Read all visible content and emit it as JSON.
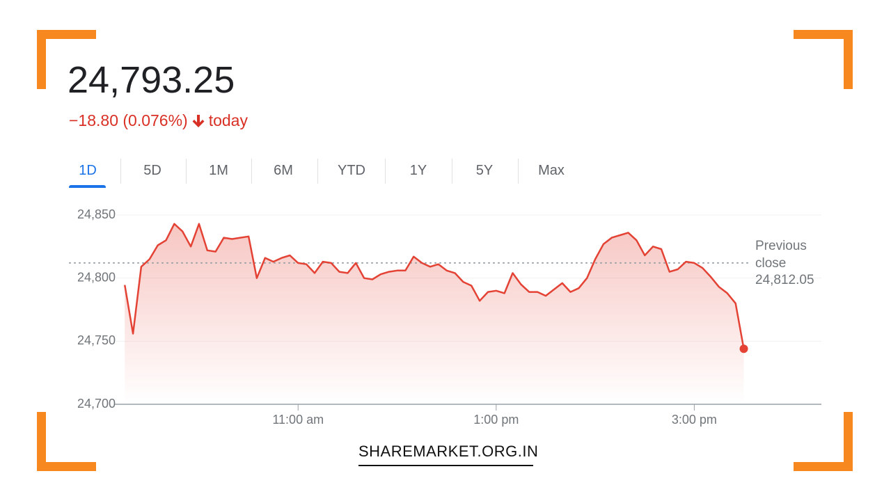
{
  "header": {
    "price": "24,793.25",
    "change": "−18.80 (0.076%)",
    "period": "today"
  },
  "tabs": {
    "items": [
      "1D",
      "5D",
      "1M",
      "6M",
      "YTD",
      "1Y",
      "5Y",
      "Max"
    ],
    "active": 0
  },
  "chart_data": {
    "type": "line",
    "color": "#e34234",
    "area": true,
    "grid": true,
    "x": [
      555,
      560,
      565,
      570,
      575,
      580,
      585,
      590,
      595,
      600,
      605,
      610,
      615,
      620,
      625,
      630,
      635,
      640,
      645,
      650,
      655,
      660,
      665,
      670,
      675,
      680,
      685,
      690,
      695,
      700,
      705,
      710,
      715,
      720,
      725,
      730,
      735,
      740,
      745,
      750,
      755,
      760,
      765,
      770,
      775,
      780,
      785,
      790,
      795,
      800,
      805,
      810,
      815,
      820,
      825,
      830,
      835,
      840,
      845,
      850,
      855,
      860,
      865,
      870,
      875,
      880,
      885,
      890,
      895,
      900,
      905,
      910,
      915,
      920,
      925,
      930
    ],
    "values": [
      24794.5,
      24756,
      24809,
      24815,
      24826,
      24830,
      24843,
      24837,
      24825,
      24843,
      24822,
      24821,
      24832,
      24831,
      24832,
      24833,
      24800,
      24816,
      24813,
      24816,
      24818,
      24812,
      24811,
      24804,
      24813,
      24812,
      24805,
      24804,
      24812,
      24800,
      24799,
      24803,
      24805,
      24806,
      24806,
      24817,
      24812,
      24809,
      24811,
      24806,
      24804,
      24797,
      24794,
      24782,
      24789,
      24790,
      24788,
      24804,
      24795,
      24789,
      24789,
      24786,
      24791,
      24796,
      24789,
      24792,
      24800,
      24815,
      24827,
      24832,
      24834,
      24836,
      24830,
      24818,
      24825,
      24823,
      24805,
      24807,
      24813,
      24812,
      24808,
      24801,
      24793,
      24788,
      24780,
      24744
    ],
    "xlim": [
      549,
      977
    ],
    "xticks": [
      {
        "value": 660,
        "label": "11:00 am"
      },
      {
        "value": 780,
        "label": "1:00 pm"
      },
      {
        "value": 900,
        "label": "3:00 pm"
      }
    ],
    "ylim": [
      24700,
      24850
    ],
    "yticks": [
      {
        "value": 24700,
        "label": "24,700"
      },
      {
        "value": 24750,
        "label": "24,750"
      },
      {
        "value": 24800,
        "label": "24,800"
      },
      {
        "value": 24850,
        "label": "24,850"
      }
    ],
    "reference_line": {
      "label": "Previous close",
      "value": 24812.05,
      "value_label": "24,812.05"
    }
  },
  "watermark": "SHAREMARKET.ORG.IN"
}
